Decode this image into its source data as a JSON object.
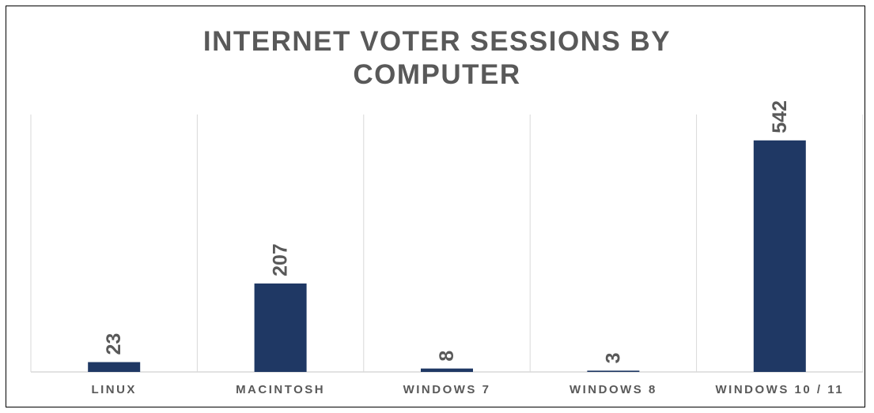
{
  "chart_data": {
    "type": "bar",
    "title_lines": [
      "INTERNET VOTER SESSIONS BY",
      "COMPUTER"
    ],
    "categories": [
      "LINUX",
      "MACINTOSH",
      "WINDOWS 7",
      "WINDOWS 8",
      "WINDOWS 10 / 11"
    ],
    "values": [
      23,
      207,
      8,
      3,
      542
    ],
    "data_labels": [
      "23",
      "207",
      "8",
      "3",
      "542"
    ],
    "bar_color": "#1f3864",
    "gridline_color": "#d9d9d9",
    "text_color": "#595959",
    "legend": false,
    "grid": true
  }
}
